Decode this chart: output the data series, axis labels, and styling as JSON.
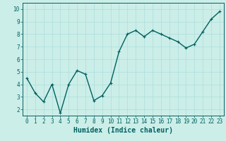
{
  "title": "",
  "xlabel": "Humidex (Indice chaleur)",
  "ylabel": "",
  "x": [
    0,
    1,
    2,
    3,
    4,
    5,
    6,
    7,
    8,
    9,
    10,
    11,
    12,
    13,
    14,
    15,
    16,
    17,
    18,
    19,
    20,
    21,
    22,
    23
  ],
  "y": [
    4.5,
    3.3,
    2.6,
    4.0,
    1.7,
    4.0,
    5.1,
    4.8,
    2.7,
    3.1,
    4.1,
    6.6,
    8.0,
    8.3,
    7.8,
    8.3,
    8.0,
    7.7,
    7.4,
    6.9,
    7.2,
    8.2,
    9.2,
    9.8
  ],
  "line_color": "#006060",
  "marker": "+",
  "marker_size": 3,
  "bg_color": "#cceee8",
  "grid_color": "#aadddd",
  "axis_color": "#006060",
  "xlim": [
    -0.5,
    23.5
  ],
  "ylim": [
    1.5,
    10.5
  ],
  "yticks": [
    2,
    3,
    4,
    5,
    6,
    7,
    8,
    9,
    10
  ],
  "xticks": [
    0,
    1,
    2,
    3,
    4,
    5,
    6,
    7,
    8,
    9,
    10,
    11,
    12,
    13,
    14,
    15,
    16,
    17,
    18,
    19,
    20,
    21,
    22,
    23
  ],
  "tick_fontsize": 5.5,
  "xlabel_fontsize": 7,
  "linewidth": 1.0
}
